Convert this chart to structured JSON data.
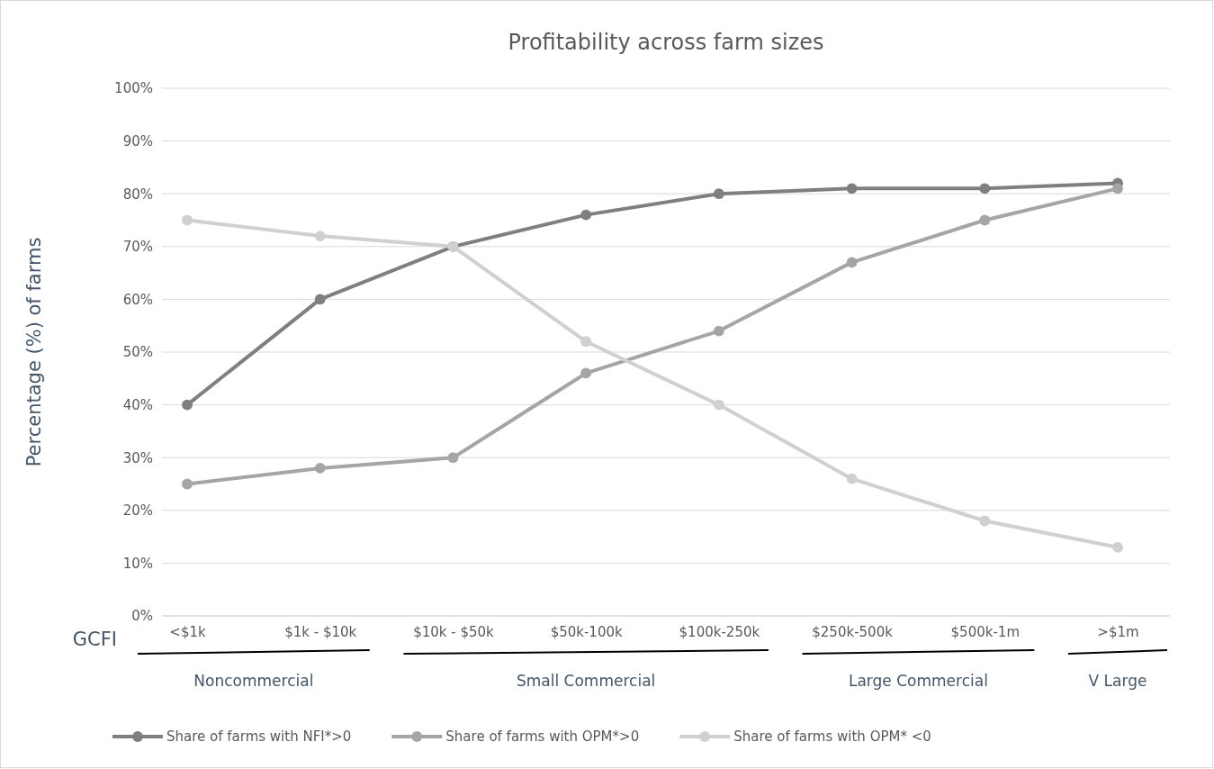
{
  "chart_data": {
    "type": "line",
    "title": "Profitability across farm sizes",
    "ylabel": "Percentage (%) of farms",
    "categories": [
      "<$1k",
      "$1k - $10k",
      "$10k - $50k",
      "$50k-100k",
      "$100k-250k",
      "$250k-500k",
      "$500k-1m",
      ">$1m"
    ],
    "series": [
      {
        "name": "Share of farms with NFI*>0",
        "color": "#7f7f7f",
        "values": [
          40,
          60,
          70,
          76,
          80,
          81,
          81,
          82
        ]
      },
      {
        "name": "Share of farms with OPM*>0",
        "color": "#a5a5a5",
        "values": [
          25,
          28,
          30,
          46,
          54,
          67,
          75,
          81
        ]
      },
      {
        "name": "Share of farms with OPM* <0",
        "color": "#d0d0d0",
        "values": [
          75,
          72,
          70,
          52,
          40,
          26,
          18,
          13
        ]
      }
    ],
    "ylim": [
      0,
      100
    ],
    "yticks": [
      {
        "value": 0,
        "label": "0%"
      },
      {
        "value": 10,
        "label": "10%"
      },
      {
        "value": 20,
        "label": "20%"
      },
      {
        "value": 30,
        "label": "30%"
      },
      {
        "value": 40,
        "label": "40%"
      },
      {
        "value": 50,
        "label": "50%"
      },
      {
        "value": 60,
        "label": "60%"
      },
      {
        "value": 70,
        "label": "70%"
      },
      {
        "value": 80,
        "label": "80%"
      },
      {
        "value": 90,
        "label": "90%"
      },
      {
        "value": 100,
        "label": "100%"
      }
    ],
    "grid": "y",
    "legend": "bottom",
    "marker": "circle",
    "line_style": "solid",
    "annotations": [
      "GCFI",
      "Noncommercial",
      "Small Commercial",
      "Large Commercial",
      "V Large"
    ]
  }
}
